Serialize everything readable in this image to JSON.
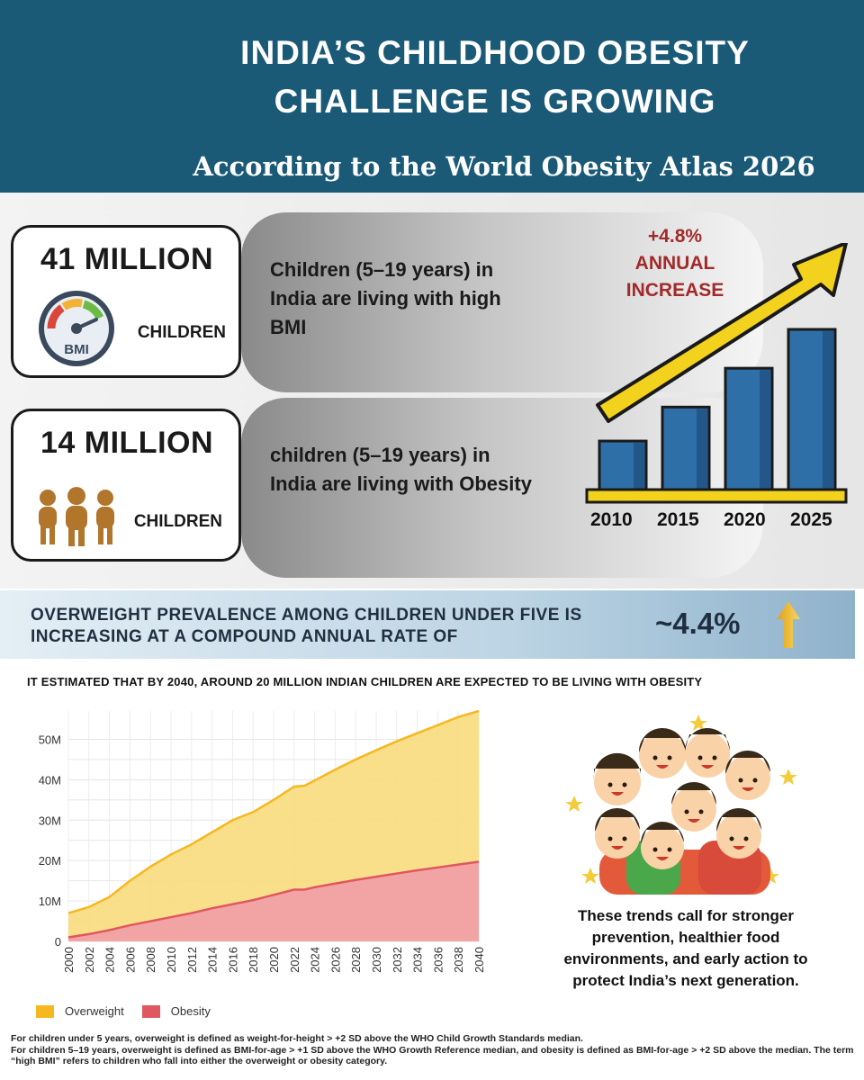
{
  "header": {
    "title": "INDIA’S CHILDHOOD OBESITY CHALLENGE IS GROWING",
    "subtitle": "According to the World Obesity Atlas 2026"
  },
  "stats": [
    {
      "number": "41 MILLION",
      "unit": "CHILDREN",
      "icon": "bmi-gauge-icon",
      "gauge_label": "BMI",
      "description": "Children (5–19 years) in India are living with high BMI"
    },
    {
      "number": "14 MILLION",
      "unit": "CHILDREN",
      "icon": "people-icon",
      "description": "children (5–19 years) in India are living with Obesity"
    }
  ],
  "growth": {
    "increase_value": "+4.8%",
    "increase_label": "ANNUAL INCREASE",
    "years": [
      "2010",
      "2015",
      "2020",
      "2025"
    ],
    "relative_values": [
      1,
      1.7,
      2.5,
      3.3
    ]
  },
  "band": {
    "text": "OVERWEIGHT  PREVALENCE AMONG CHILDREN UNDER FIVE IS INCREASING AT A COMPOUND ANNUAL RATE OF",
    "value": "~4.4%"
  },
  "projection": {
    "title": "IT ESTIMATED THAT BY 2040, AROUND 20 MILLION INDIAN CHILDREN ARE EXPECTED TO BE LIVING WITH OBESITY"
  },
  "chart_data": {
    "type": "area",
    "title": "",
    "xlabel": "",
    "ylabel": "",
    "x": [
      2000,
      2002,
      2004,
      2006,
      2008,
      2010,
      2012,
      2014,
      2016,
      2018,
      2020,
      2022,
      2023,
      2024,
      2026,
      2028,
      2030,
      2032,
      2034,
      2036,
      2038,
      2040
    ],
    "x_ticks": [
      "2000",
      "2002",
      "2004",
      "2006",
      "2008",
      "2010",
      "2012",
      "2014",
      "2016",
      "2018",
      "2020",
      "2022",
      "2024",
      "2026",
      "2028",
      "2030",
      "2032",
      "2034",
      "2036",
      "2038",
      "2040"
    ],
    "y_ticks": [
      "0",
      "10M",
      "20M",
      "30M",
      "40M",
      "50M"
    ],
    "ylim": [
      0,
      57
    ],
    "xlim": [
      2000,
      2040
    ],
    "grid": true,
    "series": [
      {
        "name": "Overweight",
        "color": "#f5b820",
        "values": [
          7,
          8.5,
          11,
          15,
          18.5,
          21.5,
          24,
          27,
          30,
          32,
          35,
          38.3,
          38.5,
          39.8,
          42.5,
          45,
          47.3,
          49.5,
          51.5,
          53.5,
          55.5,
          57
        ]
      },
      {
        "name": "Obesity",
        "color": "#e05760",
        "values": [
          1,
          1.8,
          2.8,
          4,
          5,
          6,
          7,
          8.2,
          9.2,
          10.2,
          11.5,
          12.8,
          12.8,
          13.4,
          14.3,
          15.2,
          16,
          16.8,
          17.6,
          18.3,
          19,
          19.7
        ]
      }
    ],
    "legend": "bottom-left"
  },
  "closing_text": "These trends call for stronger prevention, healthier food environments, and early action to protect India’s next generation.",
  "footnote": [
    "For children under 5 years, overweight is defined as weight-for-height > +2 SD above the WHO Child Growth Standards median.",
    "For children 5–19 years, overweight is defined as BMI-for-age > +1 SD above the WHO Growth Reference median, and obesity is defined as BMI-for-age > +2 SD above the median. The term “high BMI” refers to children who fall into either the overweight or obesity category."
  ],
  "colors": {
    "header_bg": "#1a5a77",
    "accent_yellow": "#f2d21c",
    "bar_blue": "#2f6fa8",
    "increase_red": "#a22a2a"
  }
}
